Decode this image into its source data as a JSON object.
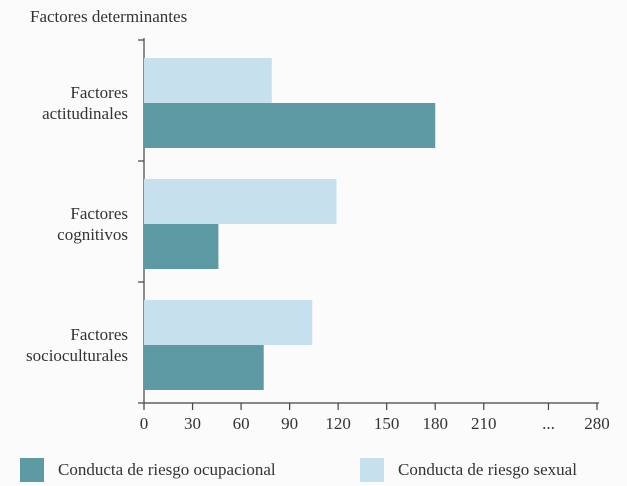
{
  "chart_data": {
    "type": "hbar",
    "title": "Factores determinantes",
    "categories": [
      "Factores actitudinales",
      "Factores cognitivos",
      "Factores socioculturales"
    ],
    "series": [
      {
        "name": "Conducta de riesgo ocupacional",
        "color": "#5e9aa4",
        "values": [
          180,
          46,
          74
        ]
      },
      {
        "name": "Conducta de riesgo sexual",
        "color": "#c6e0ee",
        "values": [
          79,
          119,
          104
        ]
      }
    ],
    "xlim": [
      0,
      280
    ],
    "xticks": [
      0,
      30,
      60,
      90,
      120,
      150,
      180,
      210,
      {
        "value": 250,
        "label": "..."
      },
      280
    ],
    "legend": "bottom"
  }
}
